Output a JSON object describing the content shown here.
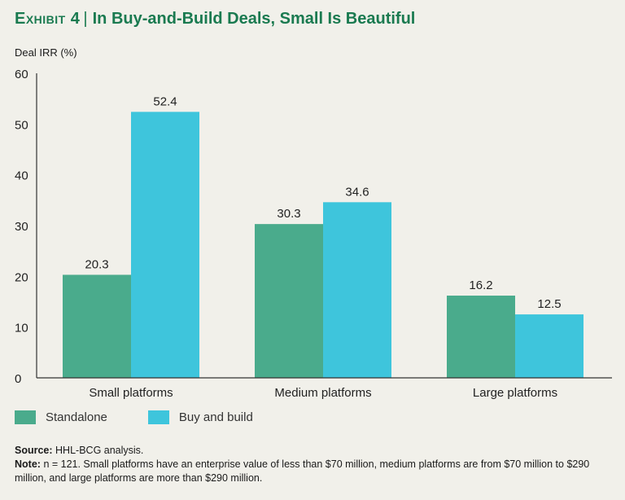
{
  "title": {
    "exhibit": "Exhibit 4",
    "separator": "|",
    "text": "In Buy-and-Build Deals, Small Is Beautiful"
  },
  "colors": {
    "title": "#1a7a50",
    "standalone": "#4aab8c",
    "buy_and_build": "#3ec5dc",
    "background": "#f1f0ea"
  },
  "chart_data": {
    "type": "bar",
    "ylabel": "Deal IRR (%)",
    "xlabel": "",
    "ylim": [
      0,
      60
    ],
    "yticks": [
      0,
      10,
      20,
      30,
      40,
      50,
      60
    ],
    "grid": false,
    "categories": [
      "Small platforms",
      "Medium platforms",
      "Large platforms"
    ],
    "series": [
      {
        "name": "Standalone",
        "values": [
          20.3,
          30.3,
          16.2
        ],
        "labels": [
          "20.3",
          "30.3",
          "16.2"
        ]
      },
      {
        "name": "Buy and build",
        "values": [
          52.4,
          34.6,
          12.5
        ],
        "labels": [
          "52.4",
          "34.6",
          "12.5"
        ]
      }
    ],
    "legend_position": "bottom-left"
  },
  "footnotes": {
    "source_label": "Source:",
    "source_text": "HHL-BCG analysis.",
    "note_label": "Note:",
    "note_text": "n = 121. Small platforms have an enterprise value of less than $70 million, medium platforms are from $70 million to $290 million, and large platforms are more than $290 million."
  }
}
